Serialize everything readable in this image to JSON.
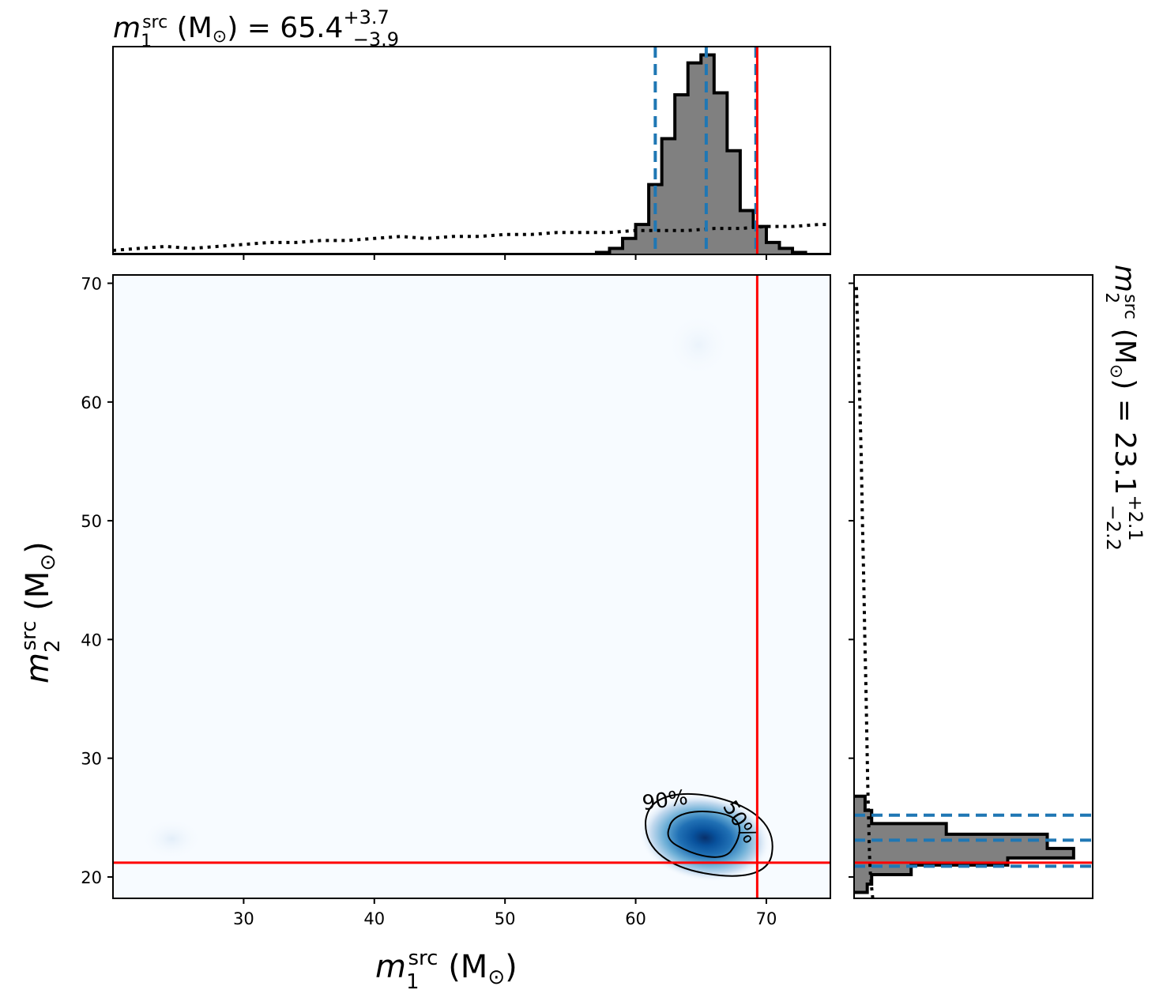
{
  "chart_data": {
    "type": "corner-plot",
    "titles": {
      "top": {
        "base": "m",
        "base_sub": "1",
        "base_sup": "src",
        "unit": " (M",
        "sun": "⊙",
        "close": ") = 65.4",
        "plus": "+3.7",
        "minus": "−3.9"
      },
      "right": {
        "base": "m",
        "base_sub": "2",
        "base_sup": "src",
        "unit": " (M",
        "sun": "⊙",
        "close": ") = 23.1",
        "plus": "+2.1",
        "minus": "−2.2"
      }
    },
    "axis_labels": {
      "x": {
        "base": "m",
        "sub": "1",
        "sup": "src",
        "unit": " (M",
        "sun": "⊙",
        "close": ")"
      },
      "y": {
        "base": "m",
        "sub": "2",
        "sup": "src",
        "unit": " (M",
        "sun": "⊙",
        "close": ")"
      }
    },
    "xlim": [
      20.0,
      74.9
    ],
    "ylim": [
      18.2,
      70.7
    ],
    "x_ticks": [
      30,
      40,
      50,
      60,
      70
    ],
    "y_ticks": [
      20,
      30,
      40,
      50,
      60,
      70
    ],
    "x_tick_labels": [
      "30",
      "40",
      "50",
      "60",
      "70"
    ],
    "y_tick_labels": [
      "20",
      "30",
      "40",
      "50",
      "60",
      "70"
    ],
    "injected": {
      "m1": 69.3,
      "m2": 21.2
    },
    "m1_quantiles": [
      61.5,
      65.4,
      69.2
    ],
    "m2_quantiles": [
      20.9,
      23.1,
      25.2
    ],
    "m1_hist": {
      "bin_edges": [
        56.0,
        57.0,
        58.0,
        59.0,
        60.0,
        61.0,
        62.0,
        63.0,
        64.0,
        65.0,
        66.0,
        67.0,
        68.0,
        69.0,
        70.0,
        71.0,
        72.0,
        73.0
      ],
      "counts": [
        0.0,
        0.01,
        0.03,
        0.08,
        0.15,
        0.35,
        0.58,
        0.8,
        0.96,
        1.0,
        0.81,
        0.52,
        0.22,
        0.14,
        0.06,
        0.03,
        0.01
      ]
    },
    "m1_prior": {
      "x": [
        20,
        22,
        24,
        26,
        28,
        30,
        32,
        34,
        36,
        38,
        40,
        42,
        44,
        46,
        48,
        50,
        52,
        54,
        56,
        58,
        60,
        62,
        64,
        66,
        68,
        70,
        72,
        74,
        74.9
      ],
      "y": [
        0.02,
        0.03,
        0.04,
        0.03,
        0.04,
        0.05,
        0.06,
        0.06,
        0.07,
        0.07,
        0.08,
        0.09,
        0.08,
        0.09,
        0.09,
        0.1,
        0.1,
        0.11,
        0.11,
        0.11,
        0.12,
        0.12,
        0.12,
        0.13,
        0.13,
        0.14,
        0.14,
        0.15,
        0.15
      ]
    },
    "m2_hist": {
      "bin_edges": [
        18.7,
        19.4,
        20.2,
        21.0,
        21.6,
        22.4,
        23.6,
        24.5,
        25.6,
        26.8
      ],
      "counts": [
        0.06,
        0.08,
        0.26,
        0.7,
        1.0,
        0.88,
        0.42,
        0.08,
        0.05
      ]
    },
    "m2_prior": {
      "y": [
        18.2,
        20.0,
        22.0,
        25.0,
        28.0,
        32.0,
        36.0,
        40.0,
        45.0,
        50.0,
        55.0,
        60.0,
        65.0,
        70.0
      ],
      "x": [
        0.085,
        0.075,
        0.07,
        0.066,
        0.062,
        0.058,
        0.054,
        0.049,
        0.044,
        0.038,
        0.033,
        0.026,
        0.018,
        0.01
      ]
    },
    "density_peak": {
      "m1": 65.3,
      "m2": 23.3
    },
    "contour_labels": [
      "90%",
      "50%"
    ],
    "colors": {
      "hist_fill": "#808080",
      "hist_edge": "#000000",
      "quantile": "#1f77b4",
      "injected": "#ff0000",
      "density": "#08519c",
      "background": "#f7fbff"
    }
  }
}
